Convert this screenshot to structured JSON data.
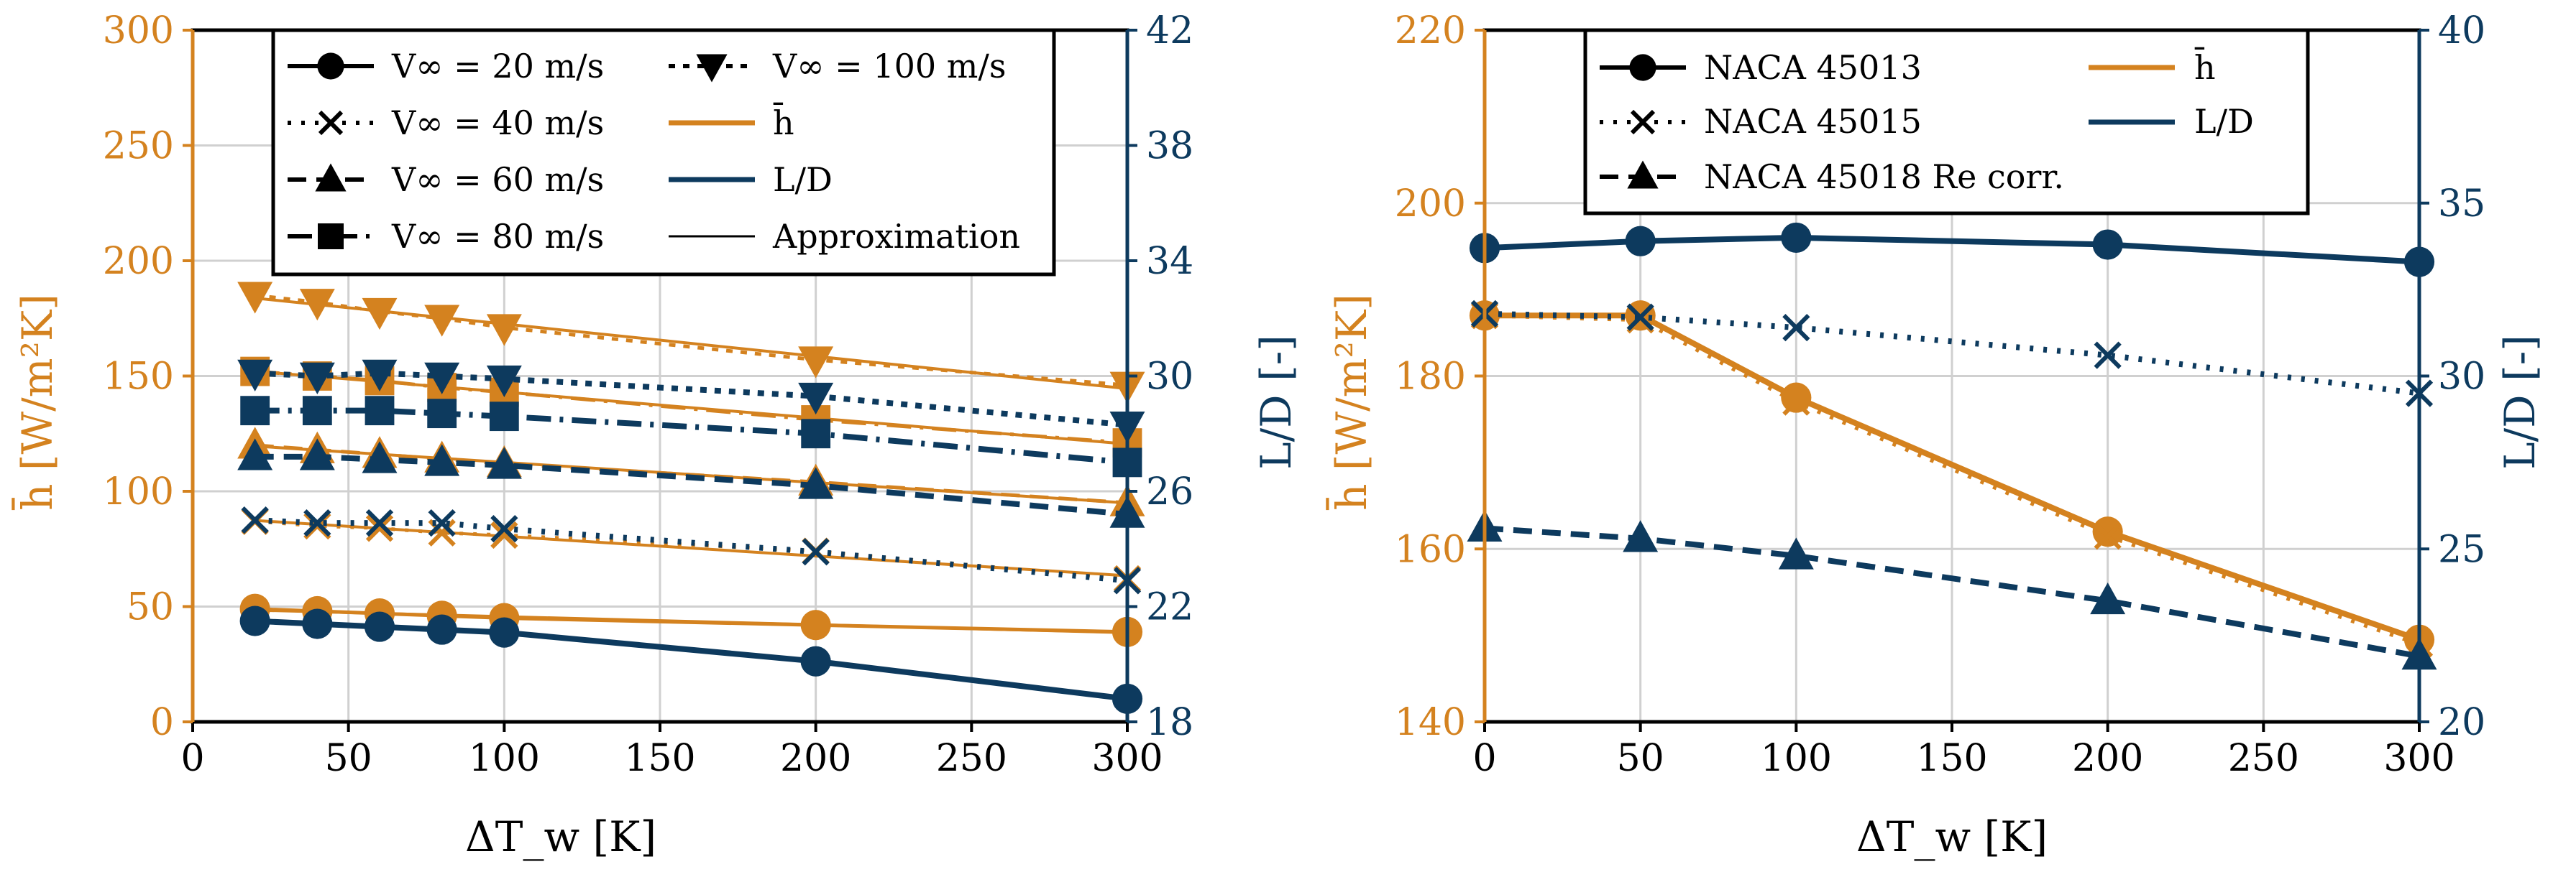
{
  "colors": {
    "h_bar": "#d4821f",
    "ld": "#0d3a5e",
    "grid": "#d0d0d0",
    "axis": "#000000"
  },
  "chart_data": [
    {
      "type": "line",
      "title": "",
      "xlabel": "ΔT_w [K]",
      "ylabel_left": "h̄ [W/m²K]",
      "ylabel_right": "L/D [-]",
      "xlim": [
        0,
        300
      ],
      "ylim_left": [
        0,
        300
      ],
      "ylim_right": [
        18,
        42
      ],
      "xticks": [
        "0",
        "50",
        "100",
        "150",
        "200",
        "250",
        "300"
      ],
      "yticks_left": [
        "0",
        "50",
        "100",
        "150",
        "200",
        "250",
        "300"
      ],
      "yticks_right": [
        "18",
        "22",
        "26",
        "30",
        "34",
        "38",
        "42"
      ],
      "grid": true,
      "legend_position": "top",
      "legend": {
        "v20": "V∞ = 20 m/s",
        "v40": "V∞ = 40 m/s",
        "v60": "V∞ = 60 m/s",
        "v80": "V∞ = 80 m/s",
        "v100": "V∞ = 100 m/s",
        "h": "h̄",
        "ld": "L/D",
        "approx": "Approximation"
      },
      "x": [
        20,
        40,
        60,
        80,
        100,
        200,
        300
      ],
      "series": [
        {
          "name": "V∞ = 20 m/s",
          "marker": "circle",
          "dash": "solid",
          "h": [
            49,
            48,
            47,
            46,
            45,
            42,
            39
          ],
          "ld": [
            21.5,
            21.4,
            21.3,
            21.2,
            21.1,
            20.1,
            18.8
          ]
        },
        {
          "name": "V∞ = 40 m/s",
          "marker": "x",
          "dash": "dotted",
          "h": [
            87,
            85,
            84,
            82,
            81,
            74,
            62
          ],
          "ld": [
            25.0,
            24.9,
            24.9,
            24.9,
            24.7,
            23.9,
            22.9
          ]
        },
        {
          "name": "V∞ = 60 m/s",
          "marker": "triangle-up",
          "dash": "dashed",
          "h": [
            120,
            118,
            116,
            114,
            112,
            104,
            95
          ],
          "ld": [
            27.2,
            27.2,
            27.1,
            27.0,
            26.9,
            26.2,
            25.2
          ]
        },
        {
          "name": "V∞ = 80 m/s",
          "marker": "square",
          "dash": "dashdot",
          "h": [
            152,
            150,
            148,
            145,
            143,
            131,
            121
          ],
          "ld": [
            28.8,
            28.8,
            28.8,
            28.7,
            28.6,
            28.0,
            27.0
          ]
        },
        {
          "name": "V∞ = 100 m/s",
          "marker": "triangle-down",
          "dash": "densedash",
          "h": [
            185,
            182,
            178,
            175,
            171,
            157,
            146
          ],
          "ld": [
            30.1,
            30.0,
            30.1,
            30.0,
            29.9,
            29.3,
            28.3
          ]
        }
      ]
    },
    {
      "type": "line",
      "title": "",
      "xlabel": "ΔT_w [K]",
      "ylabel_left": "h̄ [W/m²K]",
      "ylabel_right": "L/D [-]",
      "xlim": [
        0,
        300
      ],
      "ylim_left": [
        140,
        220
      ],
      "ylim_right": [
        20,
        40
      ],
      "xticks": [
        "0",
        "50",
        "100",
        "150",
        "200",
        "250",
        "300"
      ],
      "yticks_left": [
        "140",
        "160",
        "180",
        "200",
        "220"
      ],
      "yticks_right": [
        "20",
        "25",
        "30",
        "35",
        "40"
      ],
      "grid": true,
      "legend_position": "top",
      "legend": {
        "n13": "NACA 45013",
        "n15": "NACA 45015",
        "n18": "NACA 45018 Re corr.",
        "h": "h̄",
        "ld": "L/D"
      },
      "x": [
        0,
        50,
        100,
        200,
        300
      ],
      "series": [
        {
          "name": "NACA 45013",
          "marker": "circle",
          "dash": "solid",
          "h": [
            187,
            187,
            177.5,
            162,
            149.5
          ],
          "ld": [
            33.7,
            33.9,
            34.0,
            33.8,
            33.3
          ]
        },
        {
          "name": "NACA 45015",
          "marker": "x",
          "dash": "dotted",
          "h": [
            187,
            186.5,
            177,
            161.5,
            149
          ],
          "ld": [
            31.8,
            31.7,
            31.4,
            30.6,
            29.5
          ]
        },
        {
          "name": "NACA 45018 Re corr.",
          "marker": "triangle-up",
          "dash": "dashed",
          "ld": [
            25.6,
            25.3,
            24.8,
            23.5,
            21.9
          ]
        }
      ]
    }
  ]
}
